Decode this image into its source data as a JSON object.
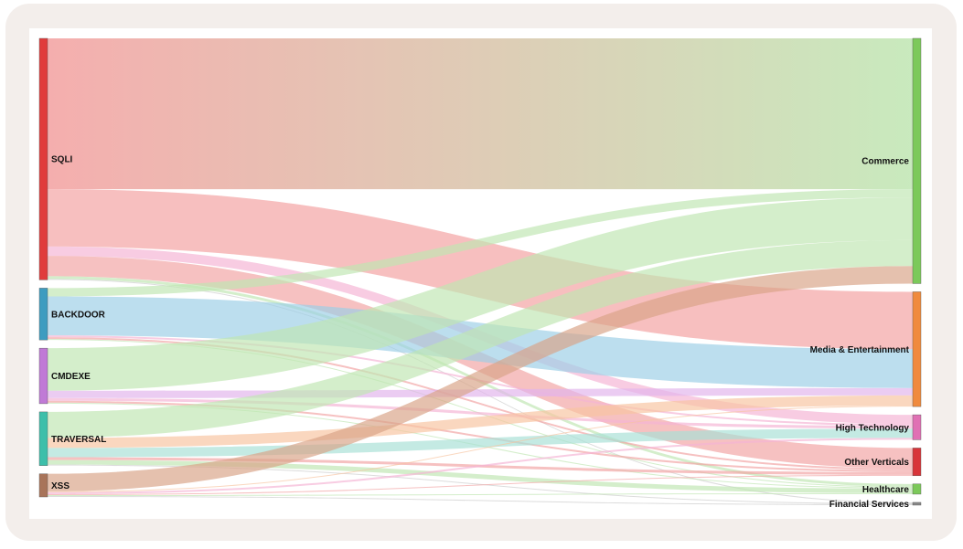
{
  "chart_data": {
    "type": "sankey",
    "title": "",
    "sources": [
      {
        "name": "SQLI",
        "color": "#e03c3c"
      },
      {
        "name": "BACKDOOR",
        "color": "#3d9cc0"
      },
      {
        "name": "CMDEXE",
        "color": "#c07ad6"
      },
      {
        "name": "TRAVERSAL",
        "color": "#3dbfaa"
      },
      {
        "name": "XSS",
        "color": "#a8745a"
      }
    ],
    "targets": [
      {
        "name": "Commerce",
        "color": "#7cc95a"
      },
      {
        "name": "Media & Entertainment",
        "color": "#f08a3e"
      },
      {
        "name": "High Technology",
        "color": "#e070b4"
      },
      {
        "name": "Other Verticals",
        "color": "#d8353a"
      },
      {
        "name": "Healthcare",
        "color": "#7cc95a"
      },
      {
        "name": "Financial Services",
        "color": "#888888"
      }
    ],
    "link_colors": {
      "SQLI": "#f3a0a0",
      "BACKDOOR": "#9ccfe6",
      "CMDEXE": "#e2b4ec",
      "TRAVERSAL": "#a8e0d6",
      "XSS": "#d8a488",
      "Commerce": "#bfe6b2",
      "Media & Entertainment": "#f8c4a0",
      "High Technology": "#f4b4d4",
      "Other Verticals": "#f2a4a4",
      "Healthcare": "#bfe6b2",
      "Financial Services": "#cccccc"
    },
    "links": [
      {
        "source": "SQLI",
        "target": "Commerce",
        "value": 163,
        "gradient": true
      },
      {
        "source": "SQLI",
        "target": "Media & Entertainment",
        "value": 62,
        "gradient": false,
        "color_by": "SQLI"
      },
      {
        "source": "SQLI",
        "target": "High Technology",
        "value": 10,
        "gradient": false,
        "color_by": "High Technology"
      },
      {
        "source": "SQLI",
        "target": "Other Verticals",
        "value": 22,
        "gradient": false,
        "color_by": "Other Verticals"
      },
      {
        "source": "SQLI",
        "target": "Healthcare",
        "value": 3,
        "gradient": false,
        "color_by": "Healthcare"
      },
      {
        "source": "SQLI",
        "target": "Financial Services",
        "value": 1,
        "gradient": false,
        "color_by": "Financial Services"
      },
      {
        "source": "BACKDOOR",
        "target": "Commerce",
        "value": 9,
        "gradient": false,
        "color_by": "Commerce"
      },
      {
        "source": "BACKDOOR",
        "target": "Media & Entertainment",
        "value": 42,
        "gradient": false,
        "color_by": "BACKDOOR"
      },
      {
        "source": "BACKDOOR",
        "target": "High Technology",
        "value": 2,
        "gradient": false,
        "color_by": "High Technology"
      },
      {
        "source": "BACKDOOR",
        "target": "Other Verticals",
        "value": 2,
        "gradient": false,
        "color_by": "Other Verticals"
      },
      {
        "source": "BACKDOOR",
        "target": "Healthcare",
        "value": 1,
        "gradient": false,
        "color_by": "Healthcare"
      },
      {
        "source": "CMDEXE",
        "target": "Commerce",
        "value": 46,
        "gradient": false,
        "color_by": "Commerce"
      },
      {
        "source": "CMDEXE",
        "target": "Media & Entertainment",
        "value": 8,
        "gradient": false,
        "color_by": "CMDEXE"
      },
      {
        "source": "CMDEXE",
        "target": "High Technology",
        "value": 3,
        "gradient": false,
        "color_by": "High Technology"
      },
      {
        "source": "CMDEXE",
        "target": "Other Verticals",
        "value": 2,
        "gradient": false,
        "color_by": "Other Verticals"
      },
      {
        "source": "CMDEXE",
        "target": "Healthcare",
        "value": 1,
        "gradient": false,
        "color_by": "Healthcare"
      },
      {
        "source": "TRAVERSAL",
        "target": "Commerce",
        "value": 28,
        "gradient": false,
        "color_by": "Commerce"
      },
      {
        "source": "TRAVERSAL",
        "target": "Media & Entertainment",
        "value": 11,
        "gradient": false,
        "color_by": "Media & Entertainment"
      },
      {
        "source": "TRAVERSAL",
        "target": "High Technology",
        "value": 10,
        "gradient": false,
        "color_by": "TRAVERSAL"
      },
      {
        "source": "TRAVERSAL",
        "target": "Other Verticals",
        "value": 3,
        "gradient": false,
        "color_by": "Other Verticals"
      },
      {
        "source": "TRAVERSAL",
        "target": "Healthcare",
        "value": 5,
        "gradient": false,
        "color_by": "Healthcare"
      },
      {
        "source": "TRAVERSAL",
        "target": "Financial Services",
        "value": 1,
        "gradient": false,
        "color_by": "Financial Services"
      },
      {
        "source": "XSS",
        "target": "Commerce",
        "value": 19,
        "gradient": false,
        "color_by": "XSS"
      },
      {
        "source": "XSS",
        "target": "Media & Entertainment",
        "value": 1,
        "gradient": false,
        "color_by": "Media & Entertainment"
      },
      {
        "source": "XSS",
        "target": "High Technology",
        "value": 2,
        "gradient": false,
        "color_by": "High Technology"
      },
      {
        "source": "XSS",
        "target": "Other Verticals",
        "value": 1,
        "gradient": false,
        "color_by": "Other Verticals"
      },
      {
        "source": "XSS",
        "target": "Healthcare",
        "value": 1,
        "gradient": false,
        "color_by": "Healthcare"
      },
      {
        "source": "XSS",
        "target": "Financial Services",
        "value": 1,
        "gradient": false,
        "color_by": "Financial Services"
      }
    ]
  }
}
